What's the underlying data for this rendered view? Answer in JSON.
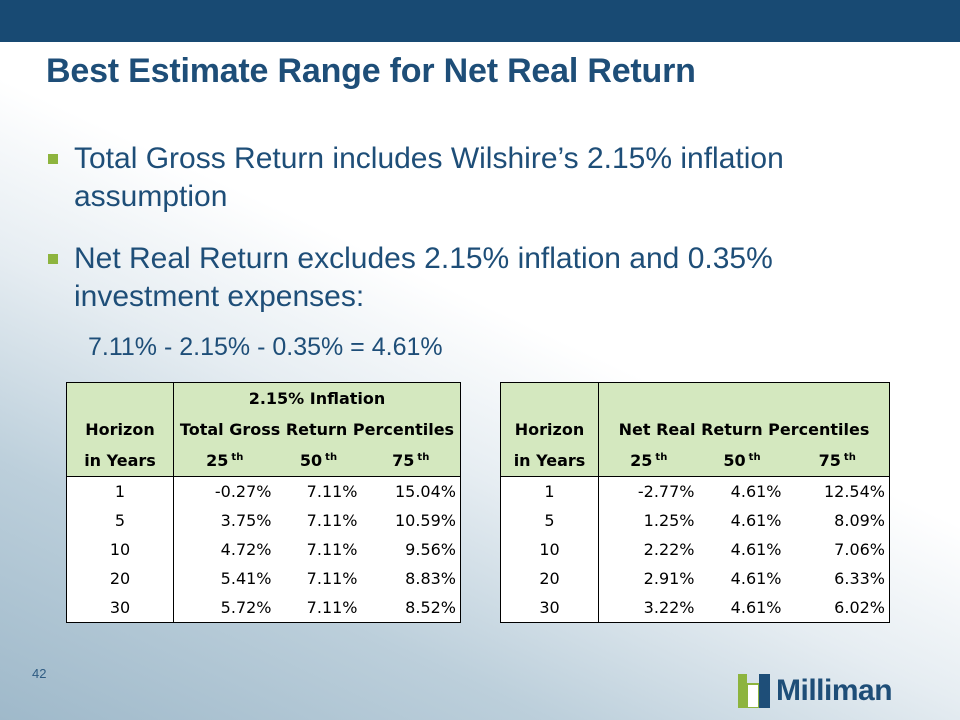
{
  "slide": {
    "title": "Best Estimate Range for Net Real Return",
    "bullets": [
      "Total Gross Return includes Wilshire’s 2.15% inflation assumption",
      "Net Real Return excludes 2.15% inflation and 0.35% investment expenses:"
    ],
    "formula": "7.11% - 2.15% - 0.35% = 4.61%",
    "page_number": "42",
    "logo_text": "Milliman"
  },
  "colors": {
    "topbar": "#184a73",
    "title": "#1e4e78",
    "bullet_marker": "#8db43e",
    "table_header": "#d4e8bf"
  },
  "table1": {
    "header_top": "2.15% Inflation",
    "horizon_label": "Horizon",
    "group_label": "Total Gross Return Percentiles",
    "years_label": "in Years",
    "p25": "25",
    "p50": "50",
    "p75": "75",
    "th": "th",
    "rows": [
      {
        "h": "1",
        "p25": "-0.27%",
        "p50": "7.11%",
        "p75": "15.04%"
      },
      {
        "h": "5",
        "p25": "3.75%",
        "p50": "7.11%",
        "p75": "10.59%"
      },
      {
        "h": "10",
        "p25": "4.72%",
        "p50": "7.11%",
        "p75": "9.56%"
      },
      {
        "h": "20",
        "p25": "5.41%",
        "p50": "7.11%",
        "p75": "8.83%"
      },
      {
        "h": "30",
        "p25": "5.72%",
        "p50": "7.11%",
        "p75": "8.52%"
      }
    ]
  },
  "table2": {
    "horizon_label": "Horizon",
    "group_label": "Net Real Return Percentiles",
    "years_label": "in Years",
    "p25": "25",
    "p50": "50",
    "p75": "75",
    "th": "th",
    "rows": [
      {
        "h": "1",
        "p25": "-2.77%",
        "p50": "4.61%",
        "p75": "12.54%"
      },
      {
        "h": "5",
        "p25": "1.25%",
        "p50": "4.61%",
        "p75": "8.09%"
      },
      {
        "h": "10",
        "p25": "2.22%",
        "p50": "4.61%",
        "p75": "7.06%"
      },
      {
        "h": "20",
        "p25": "2.91%",
        "p50": "4.61%",
        "p75": "6.33%"
      },
      {
        "h": "30",
        "p25": "3.22%",
        "p50": "4.61%",
        "p75": "6.02%"
      }
    ]
  }
}
